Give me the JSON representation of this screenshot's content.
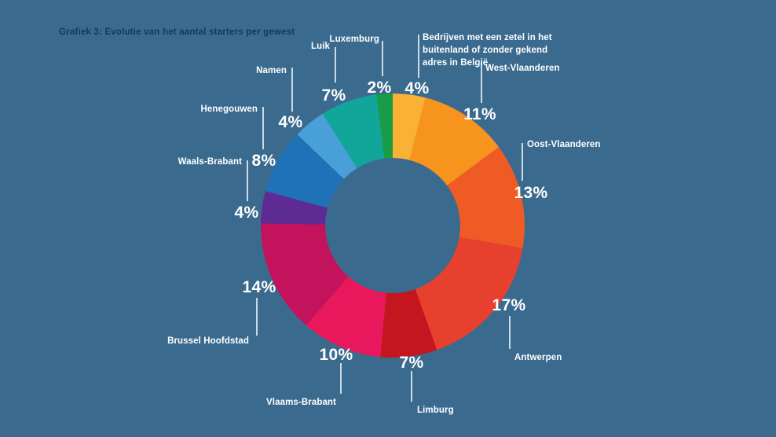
{
  "page": {
    "background_color": "#3A6B8F",
    "title": "Grafiek 3: Evolutie van het aantal starters per gewest",
    "title_color": "#16375B"
  },
  "chart_data": {
    "type": "pie",
    "subtype": "donut",
    "title": "Grafiek 3: Evolutie van het aantal starters per gewest",
    "unit": "%",
    "order": "clockwise from 12 o'clock",
    "legend_position": "callout-labels around donut",
    "slices": [
      {
        "id": "buitenland",
        "label": "Bedrijven met een zetel in het\nbuitenland of zonder gekend\nadres in België",
        "value": 4,
        "display": "4%",
        "color": "#F9B233"
      },
      {
        "id": "west-vlaanderen",
        "label": "West-Vlaanderen",
        "value": 11,
        "display": "11%",
        "color": "#F7941D"
      },
      {
        "id": "oost-vlaanderen",
        "label": "Oost-Vlaanderen",
        "value": 13,
        "display": "13%",
        "color": "#EE5B24"
      },
      {
        "id": "antwerpen",
        "label": "Antwerpen",
        "value": 17,
        "display": "17%",
        "color": "#E7402F"
      },
      {
        "id": "limburg",
        "label": "Limburg",
        "value": 7,
        "display": "7%",
        "color": "#C3161E"
      },
      {
        "id": "vlaams-brabant",
        "label": "Vlaams-Brabant",
        "value": 10,
        "display": "10%",
        "color": "#E9185C"
      },
      {
        "id": "brussel-hoofdstad",
        "label": "Brussel Hoofdstad",
        "value": 14,
        "display": "14%",
        "color": "#C2135C"
      },
      {
        "id": "waals-brabant",
        "label": "Waals-Brabant",
        "value": 4,
        "display": "4%",
        "color": "#5E2B95"
      },
      {
        "id": "henegouwen",
        "label": "Henegouwen",
        "value": 8,
        "display": "8%",
        "color": "#2072B8"
      },
      {
        "id": "namen",
        "label": "Namen",
        "value": 4,
        "display": "4%",
        "color": "#49A0D9"
      },
      {
        "id": "luik",
        "label": "Luik",
        "value": 7,
        "display": "7%",
        "color": "#12A69A"
      },
      {
        "id": "luxemburg",
        "label": "Luxemburg",
        "value": 2,
        "display": "2%",
        "color": "#189C47"
      }
    ],
    "colors": {
      "background": "#3A6B8F",
      "label_text": "#FFFFFF",
      "connector_line": "rgba(255,255,255,0.75)"
    }
  }
}
